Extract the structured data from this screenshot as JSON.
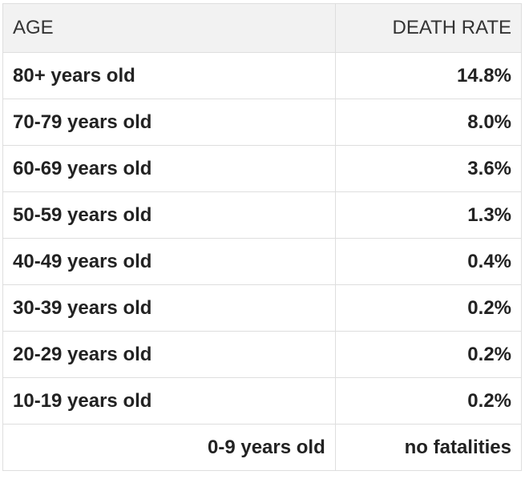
{
  "table": {
    "headers": {
      "age": "AGE",
      "death_rate": "DEATH RATE"
    },
    "rows": [
      {
        "age": "80+ years old",
        "rate": "14.8%"
      },
      {
        "age": "70-79 years old",
        "rate": "8.0%"
      },
      {
        "age": "60-69 years old",
        "rate": "3.6%"
      },
      {
        "age": "50-59 years old",
        "rate": "1.3%"
      },
      {
        "age": "40-49 years old",
        "rate": "0.4%"
      },
      {
        "age": "30-39 years old",
        "rate": "0.2%"
      },
      {
        "age": "20-29 years old",
        "rate": "0.2%"
      },
      {
        "age": "10-19 years old",
        "rate": "0.2%"
      },
      {
        "age": "0-9 years old",
        "rate": "no fatalities"
      }
    ]
  }
}
